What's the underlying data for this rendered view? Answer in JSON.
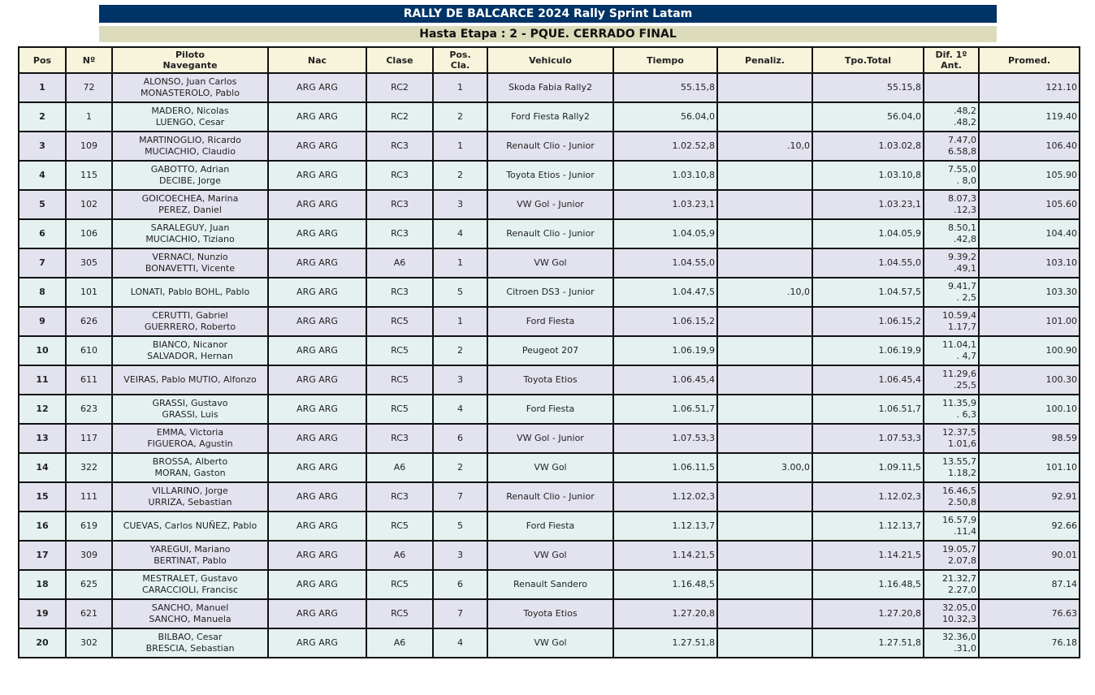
{
  "title": "RALLY DE BALCARCE 2024 Rally Sprint Latam",
  "subtitle": "Hasta Etapa : 2 - PQUE. CERRADO FINAL",
  "columns": [
    [
      "Pos"
    ],
    [
      "Nº"
    ],
    [
      "Piloto",
      "Navegante"
    ],
    [
      "Nac"
    ],
    [
      "Clase"
    ],
    [
      "Pos.",
      "Cla."
    ],
    [
      "Vehiculo"
    ],
    [
      "Tiempo"
    ],
    [
      "Penaliz."
    ],
    [
      "Tpo.Total"
    ],
    [
      "Dif. 1º",
      "Ant."
    ],
    [
      "Promed."
    ]
  ],
  "rows": [
    {
      "pos": "1",
      "num": "72",
      "crew": [
        "ALONSO, Juan Carlos",
        "MONASTEROLO, Pablo"
      ],
      "nac": "ARG ARG",
      "clase": "RC2",
      "poscla": "1",
      "vehiculo": "Skoda Fabia Rally2",
      "tiempo": "55.15,8",
      "penaliz": "",
      "total": "55.15,8",
      "dif": [
        "",
        ""
      ],
      "promed": "121.10"
    },
    {
      "pos": "2",
      "num": "1",
      "crew": [
        "MADERO, Nicolas",
        "LUENGO, Cesar"
      ],
      "nac": "ARG ARG",
      "clase": "RC2",
      "poscla": "2",
      "vehiculo": "Ford Fiesta Rally2",
      "tiempo": "56.04,0",
      "penaliz": "",
      "total": "56.04,0",
      "dif": [
        ".48,2",
        ".48,2"
      ],
      "promed": "119.40"
    },
    {
      "pos": "3",
      "num": "109",
      "crew": [
        "MARTINOGLIO, Ricardo",
        "MUCIACHIO, Claudio"
      ],
      "nac": "ARG ARG",
      "clase": "RC3",
      "poscla": "1",
      "vehiculo": "Renault Clio - Junior",
      "tiempo": "1.02.52,8",
      "penaliz": ".10,0",
      "total": "1.03.02,8",
      "dif": [
        "7.47,0",
        "6.58,8"
      ],
      "promed": "106.40"
    },
    {
      "pos": "4",
      "num": "115",
      "crew": [
        "GABOTTO, Adrian",
        "DECIBE, Jorge"
      ],
      "nac": "ARG ARG",
      "clase": "RC3",
      "poscla": "2",
      "vehiculo": "Toyota Etios - Junior",
      "tiempo": "1.03.10,8",
      "penaliz": "",
      "total": "1.03.10,8",
      "dif": [
        "7.55,0",
        ". 8,0"
      ],
      "promed": "105.90"
    },
    {
      "pos": "5",
      "num": "102",
      "crew": [
        "GOICOECHEA, Marina",
        "PEREZ, Daniel"
      ],
      "nac": "ARG ARG",
      "clase": "RC3",
      "poscla": "3",
      "vehiculo": "VW Gol - Junior",
      "tiempo": "1.03.23,1",
      "penaliz": "",
      "total": "1.03.23,1",
      "dif": [
        "8.07,3",
        ".12,3"
      ],
      "promed": "105.60"
    },
    {
      "pos": "6",
      "num": "106",
      "crew": [
        "SARALEGUY, Juan",
        "MUCIACHIO, Tiziano"
      ],
      "nac": "ARG ARG",
      "clase": "RC3",
      "poscla": "4",
      "vehiculo": "Renault Clio - Junior",
      "tiempo": "1.04.05,9",
      "penaliz": "",
      "total": "1.04.05,9",
      "dif": [
        "8.50,1",
        ".42,8"
      ],
      "promed": "104.40"
    },
    {
      "pos": "7",
      "num": "305",
      "crew": [
        "VERNACI, Nunzio",
        "BONAVETTI, Vicente"
      ],
      "nac": "ARG ARG",
      "clase": "A6",
      "poscla": "1",
      "vehiculo": "VW Gol",
      "tiempo": "1.04.55,0",
      "penaliz": "",
      "total": "1.04.55,0",
      "dif": [
        "9.39,2",
        ".49,1"
      ],
      "promed": "103.10"
    },
    {
      "pos": "8",
      "num": "101",
      "crew": [
        "LONATI, Pablo   BOHL, Pablo",
        ""
      ],
      "nac": "ARG ARG",
      "clase": "RC3",
      "poscla": "5",
      "vehiculo": "Citroen DS3 - Junior",
      "tiempo": "1.04.47,5",
      "penaliz": ".10,0",
      "total": "1.04.57,5",
      "dif": [
        "9.41,7",
        ". 2,5"
      ],
      "promed": "103.30"
    },
    {
      "pos": "9",
      "num": "626",
      "crew": [
        "CERUTTI, Gabriel",
        "GUERRERO, Roberto"
      ],
      "nac": "ARG ARG",
      "clase": "RC5",
      "poscla": "1",
      "vehiculo": "Ford Fiesta",
      "tiempo": "1.06.15,2",
      "penaliz": "",
      "total": "1.06.15,2",
      "dif": [
        "10.59,4",
        "1.17,7"
      ],
      "promed": "101.00"
    },
    {
      "pos": "10",
      "num": "610",
      "crew": [
        "BIANCO, Nicanor",
        "SALVADOR, Hernan"
      ],
      "nac": "ARG ARG",
      "clase": "RC5",
      "poscla": "2",
      "vehiculo": "Peugeot 207",
      "tiempo": "1.06.19,9",
      "penaliz": "",
      "total": "1.06.19,9",
      "dif": [
        "11.04,1",
        ". 4,7"
      ],
      "promed": "100.90"
    },
    {
      "pos": "11",
      "num": "611",
      "crew": [
        "VEIRAS, Pablo   MUTIO, Alfonzo",
        ""
      ],
      "nac": "ARG ARG",
      "clase": "RC5",
      "poscla": "3",
      "vehiculo": "Toyota Etios",
      "tiempo": "1.06.45,4",
      "penaliz": "",
      "total": "1.06.45,4",
      "dif": [
        "11.29,6",
        ".25,5"
      ],
      "promed": "100.30"
    },
    {
      "pos": "12",
      "num": "623",
      "crew": [
        "GRASSI, Gustavo",
        "GRASSI, Luis"
      ],
      "nac": "ARG ARG",
      "clase": "RC5",
      "poscla": "4",
      "vehiculo": "Ford Fiesta",
      "tiempo": "1.06.51,7",
      "penaliz": "",
      "total": "1.06.51,7",
      "dif": [
        "11.35,9",
        ". 6,3"
      ],
      "promed": "100.10"
    },
    {
      "pos": "13",
      "num": "117",
      "crew": [
        "EMMA, Victoria",
        "FIGUEROA, Agustin"
      ],
      "nac": "ARG ARG",
      "clase": "RC3",
      "poscla": "6",
      "vehiculo": "VW Gol - Junior",
      "tiempo": "1.07.53,3",
      "penaliz": "",
      "total": "1.07.53,3",
      "dif": [
        "12.37,5",
        "1.01,6"
      ],
      "promed": "98.59"
    },
    {
      "pos": "14",
      "num": "322",
      "crew": [
        "BROSSA, Alberto",
        "MORAN, Gaston"
      ],
      "nac": "ARG ARG",
      "clase": "A6",
      "poscla": "2",
      "vehiculo": "VW Gol",
      "tiempo": "1.06.11,5",
      "penaliz": "3.00,0",
      "total": "1.09.11,5",
      "dif": [
        "13.55,7",
        "1.18,2"
      ],
      "promed": "101.10"
    },
    {
      "pos": "15",
      "num": "111",
      "crew": [
        "VILLARINO, Jorge",
        "URRIZA, Sebastian"
      ],
      "nac": "ARG ARG",
      "clase": "RC3",
      "poscla": "7",
      "vehiculo": "Renault Clio - Junior",
      "tiempo": "1.12.02,3",
      "penaliz": "",
      "total": "1.12.02,3",
      "dif": [
        "16.46,5",
        "2.50,8"
      ],
      "promed": "92.91"
    },
    {
      "pos": "16",
      "num": "619",
      "crew": [
        "CUEVAS, Carlos   NUÑEZ, Pablo",
        ""
      ],
      "nac": "ARG ARG",
      "clase": "RC5",
      "poscla": "5",
      "vehiculo": "Ford Fiesta",
      "tiempo": "1.12.13,7",
      "penaliz": "",
      "total": "1.12.13,7",
      "dif": [
        "16.57,9",
        ".11,4"
      ],
      "promed": "92.66"
    },
    {
      "pos": "17",
      "num": "309",
      "crew": [
        "YAREGUI, Mariano",
        "BERTINAT, Pablo"
      ],
      "nac": "ARG ARG",
      "clase": "A6",
      "poscla": "3",
      "vehiculo": "VW Gol",
      "tiempo": "1.14.21,5",
      "penaliz": "",
      "total": "1.14.21,5",
      "dif": [
        "19.05,7",
        "2.07,8"
      ],
      "promed": "90.01"
    },
    {
      "pos": "18",
      "num": "625",
      "crew": [
        "MESTRALET, Gustavo",
        "CARACCIOLI, Francisc"
      ],
      "nac": "ARG ARG",
      "clase": "RC5",
      "poscla": "6",
      "vehiculo": "Renault Sandero",
      "tiempo": "1.16.48,5",
      "penaliz": "",
      "total": "1.16.48,5",
      "dif": [
        "21.32,7",
        "2.27,0"
      ],
      "promed": "87.14"
    },
    {
      "pos": "19",
      "num": "621",
      "crew": [
        "SANCHO, Manuel",
        "SANCHO, Manuela"
      ],
      "nac": "ARG ARG",
      "clase": "RC5",
      "poscla": "7",
      "vehiculo": "Toyota Etios",
      "tiempo": "1.27.20,8",
      "penaliz": "",
      "total": "1.27.20,8",
      "dif": [
        "32.05,0",
        "10.32,3"
      ],
      "promed": "76.63"
    },
    {
      "pos": "20",
      "num": "302",
      "crew": [
        "BILBAO, Cesar",
        "BRESCIA, Sebastian"
      ],
      "nac": "ARG ARG",
      "clase": "A6",
      "poscla": "4",
      "vehiculo": "VW Gol",
      "tiempo": "1.27.51,8",
      "penaliz": "",
      "total": "1.27.51,8",
      "dif": [
        "32.36,0",
        ".31,0"
      ],
      "promed": "76.18"
    }
  ]
}
